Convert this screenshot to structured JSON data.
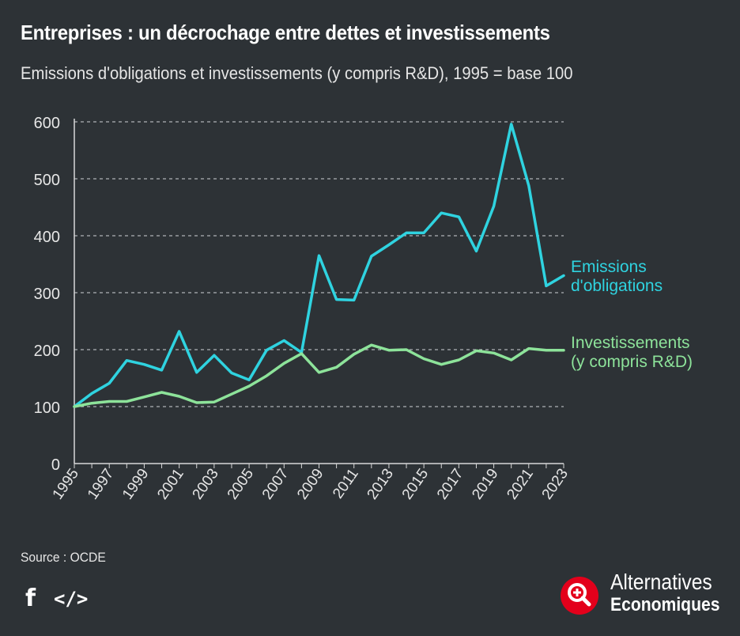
{
  "title": "Entreprises : un décrochage entre dettes et investissements",
  "subtitle": "Emissions d'obligations et investissements (y compris R&D), 1995 = base 100",
  "source": "Source : OCDE",
  "brand": {
    "line1": "Alternatives",
    "line2": "Economiques",
    "color": "#e3001b"
  },
  "share": {
    "facebook_icon": "facebook-icon",
    "embed_icon": "embed-code-icon"
  },
  "chart_data": {
    "type": "line",
    "title": "Entreprises : un décrochage entre dettes et investissements",
    "subtitle": "Emissions d'obligations et investissements (y compris R&D), 1995 = base 100",
    "x": [
      1995,
      1996,
      1997,
      1998,
      1999,
      2000,
      2001,
      2002,
      2003,
      2004,
      2005,
      2006,
      2007,
      2008,
      2009,
      2010,
      2011,
      2012,
      2013,
      2014,
      2015,
      2016,
      2017,
      2018,
      2019,
      2020,
      2021,
      2022,
      2023
    ],
    "x_tick_labels": [
      "1995",
      "1997",
      "1999",
      "2001",
      "2003",
      "2005",
      "2007",
      "2009",
      "2011",
      "2013",
      "2015",
      "2017",
      "2019",
      "2021",
      "2023"
    ],
    "y_ticks": [
      0,
      100,
      200,
      300,
      400,
      500,
      600
    ],
    "ylim": [
      0,
      600
    ],
    "grid": "horizontal dashed",
    "legend": "direct labels at line ends (right)",
    "series": [
      {
        "name": "Emissions d'obligations",
        "label_lines": [
          "Emissions",
          "d'obligations"
        ],
        "color": "#2fd3e0",
        "values": [
          100,
          123,
          141,
          181,
          174,
          164,
          232,
          160,
          190,
          159,
          147,
          199,
          216,
          195,
          365,
          288,
          287,
          364,
          384,
          405,
          405,
          440,
          433,
          373,
          452,
          596,
          488,
          312,
          330
        ]
      },
      {
        "name": "Investissements (y compris R&D)",
        "label_lines": [
          "Investissements",
          "(y compris R&D)"
        ],
        "color": "#8de39a",
        "values": [
          100,
          106,
          109,
          109,
          117,
          125,
          118,
          107,
          108,
          122,
          136,
          154,
          176,
          193,
          160,
          169,
          192,
          208,
          199,
          200,
          184,
          174,
          182,
          198,
          194,
          182,
          202,
          199,
          199
        ]
      }
    ]
  }
}
